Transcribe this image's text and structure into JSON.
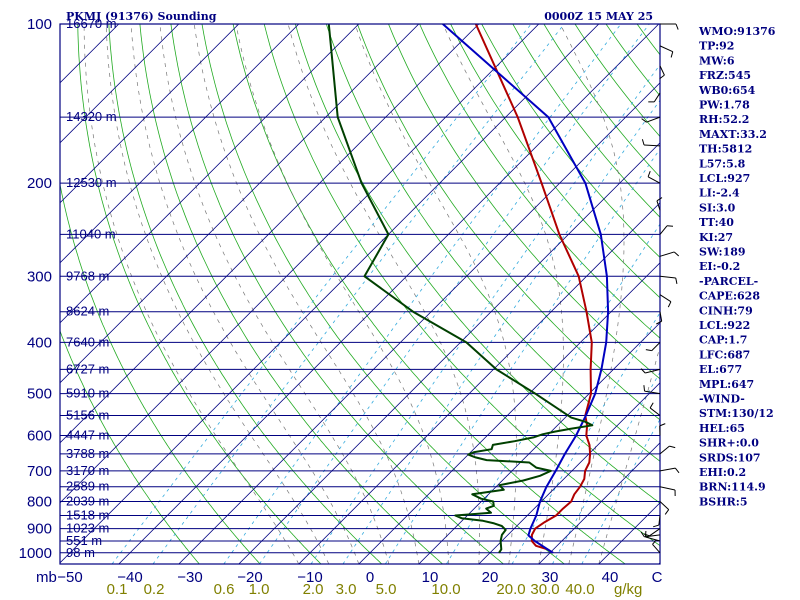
{
  "chart_data": {
    "type": "line",
    "title": "PKMJ (91376) Sounding",
    "time": "0000Z 15 MAY 25",
    "pressure_axis_unit": "mb",
    "mixing_ratio_unit": "g/kg",
    "pressure_ticks": [
      100,
      200,
      300,
      400,
      500,
      600,
      700,
      800,
      900,
      1000
    ],
    "temperature_ticks": [
      -50,
      -40,
      -30,
      -20,
      -10,
      0,
      10,
      20,
      30,
      40
    ],
    "temperature_tick_labels": [
      "−50",
      "−40",
      "−30",
      "−20",
      "−10",
      "0",
      "10",
      "20",
      "30",
      "40"
    ],
    "mixing_ratio_ticks": [
      "0.1",
      "0.2",
      "0.6",
      "1.0",
      "2.0",
      "3.0",
      "5.0",
      "10.0",
      "20.0",
      "30.0",
      "40.0"
    ],
    "heights": [
      {
        "p": 100,
        "label": "16670 m"
      },
      {
        "p": 150,
        "label": "14320 m"
      },
      {
        "p": 200,
        "label": "12530 m"
      },
      {
        "p": 250,
        "label": "11040 m"
      },
      {
        "p": 300,
        "label": "9768 m"
      },
      {
        "p": 350,
        "label": "8624 m"
      },
      {
        "p": 400,
        "label": "7640 m"
      },
      {
        "p": 450,
        "label": "6727 m"
      },
      {
        "p": 500,
        "label": "5910 m"
      },
      {
        "p": 550,
        "label": "5156 m"
      },
      {
        "p": 600,
        "label": "4447 m"
      },
      {
        "p": 650,
        "label": "3788 m"
      },
      {
        "p": 700,
        "label": "3170 m"
      },
      {
        "p": 750,
        "label": "2589 m"
      },
      {
        "p": 800,
        "label": "2039 m"
      },
      {
        "p": 850,
        "label": "1518 m"
      },
      {
        "p": 900,
        "label": "1023 m"
      },
      {
        "p": 950,
        "label": "551 m"
      },
      {
        "p": 1000,
        "label": "98 m"
      }
    ],
    "indices": [
      "WMO:91376",
      "TP:92",
      "MW:6",
      "FRZ:545",
      "WB0:654",
      "PW:1.78",
      "RH:52.2",
      "MAXT:33.2",
      "TH:5812",
      "L57:5.8",
      "LCL:927",
      "LI:-2.4",
      "SI:3.0",
      "TT:40",
      "KI:27",
      "SW:189",
      "EI:-0.2",
      "-PARCEL-",
      "CAPE:628",
      "CINH:79",
      "LCL:922",
      "CAP:1.7",
      "LFC:687",
      "EL:677",
      "MPL:647",
      "-WIND-",
      "STM:130/12",
      "HEL:65",
      "SHR+:0.0",
      "SRDS:107",
      "EHI:0.2",
      "BRN:114.9",
      "BSHR:5"
    ],
    "series": [
      {
        "key": "temperature",
        "color": "#b00000",
        "points": [
          [
            1000,
            30.5
          ],
          [
            985,
            29.0
          ],
          [
            970,
            26.5
          ],
          [
            950,
            25.0
          ],
          [
            925,
            24.0
          ],
          [
            900,
            23.5
          ],
          [
            875,
            24.0
          ],
          [
            850,
            24.8
          ],
          [
            825,
            24.8
          ],
          [
            800,
            25.0
          ],
          [
            775,
            24.3
          ],
          [
            750,
            24.0
          ],
          [
            725,
            23.4
          ],
          [
            700,
            22.2
          ],
          [
            675,
            21.5
          ],
          [
            650,
            20.2
          ],
          [
            625,
            18.6
          ],
          [
            600,
            16.5
          ],
          [
            575,
            15.0
          ],
          [
            550,
            13.0
          ],
          [
            500,
            10.3
          ],
          [
            450,
            6.2
          ],
          [
            400,
            1.9
          ],
          [
            350,
            -4.1
          ],
          [
            300,
            -11.3
          ],
          [
            250,
            -21.5
          ],
          [
            200,
            -33.0
          ],
          [
            150,
            -48.0
          ],
          [
            100,
            -70.5
          ]
        ]
      },
      {
        "key": "parcel",
        "color": "#0000c0",
        "points": [
          [
            1000,
            30.5
          ],
          [
            950,
            25.5
          ],
          [
            927,
            23.5
          ],
          [
            900,
            22.7
          ],
          [
            850,
            21.5
          ],
          [
            800,
            19.8
          ],
          [
            750,
            18.4
          ],
          [
            700,
            17.3
          ],
          [
            650,
            16.0
          ],
          [
            600,
            14.8
          ],
          [
            550,
            13.1
          ],
          [
            500,
            11.0
          ],
          [
            450,
            8.0
          ],
          [
            400,
            4.3
          ],
          [
            350,
            -0.5
          ],
          [
            300,
            -6.6
          ],
          [
            250,
            -14.6
          ],
          [
            200,
            -25.7
          ],
          [
            150,
            -42.9
          ],
          [
            100,
            -76.0
          ]
        ]
      },
      {
        "key": "dewpoint",
        "color": "#004000",
        "points": [
          [
            1000,
            21.5
          ],
          [
            985,
            21.3
          ],
          [
            950,
            19.8
          ],
          [
            925,
            19.0
          ],
          [
            905,
            18.8
          ],
          [
            890,
            17.5
          ],
          [
            880,
            15.8
          ],
          [
            870,
            13.5
          ],
          [
            860,
            9.5
          ],
          [
            850,
            8.0
          ],
          [
            840,
            13.5
          ],
          [
            825,
            12.0
          ],
          [
            815,
            12.8
          ],
          [
            800,
            12.0
          ],
          [
            790,
            9.5
          ],
          [
            775,
            7.3
          ],
          [
            760,
            11.8
          ],
          [
            745,
            10.3
          ],
          [
            730,
            13.5
          ],
          [
            715,
            15.5
          ],
          [
            700,
            16.5
          ],
          [
            690,
            13.5
          ],
          [
            675,
            11.5
          ],
          [
            668,
            4.0
          ],
          [
            660,
            1.7
          ],
          [
            652,
            0.0
          ],
          [
            645,
            0.6
          ],
          [
            637,
            3.0
          ],
          [
            625,
            2.5
          ],
          [
            615,
            5.5
          ],
          [
            605,
            8.0
          ],
          [
            597,
            9.0
          ],
          [
            590,
            10.6
          ],
          [
            583,
            12.7
          ],
          [
            574,
            15.8
          ],
          [
            565,
            14.0
          ],
          [
            555,
            11.0
          ],
          [
            500,
            1.0
          ],
          [
            450,
            -9.5
          ],
          [
            400,
            -19.0
          ],
          [
            350,
            -33.0
          ],
          [
            300,
            -47.0
          ],
          [
            250,
            -50.0
          ],
          [
            200,
            -63.0
          ],
          [
            150,
            -78.0
          ],
          [
            100,
            -95.0
          ]
        ]
      }
    ]
  }
}
